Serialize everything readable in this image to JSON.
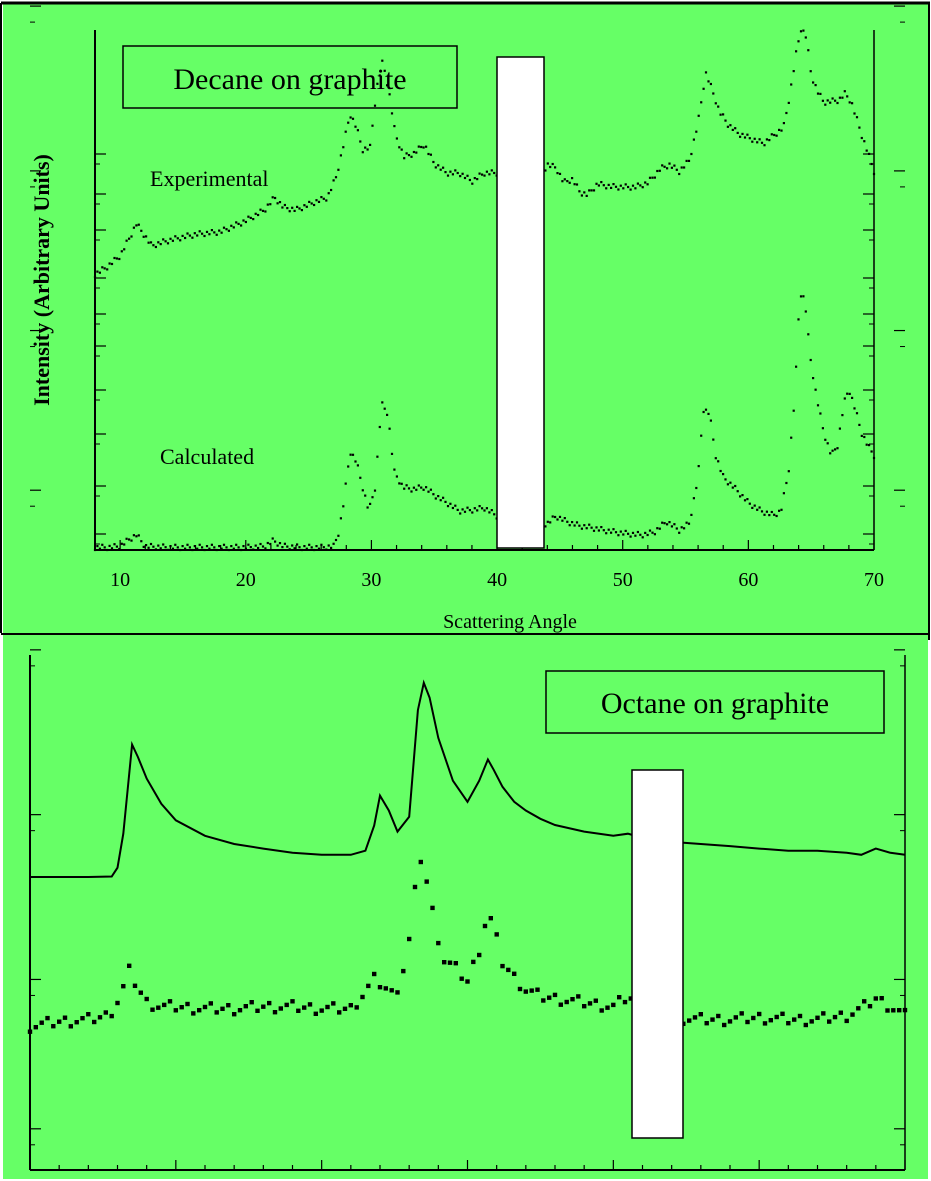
{
  "colors": {
    "background": "#66ff66",
    "ink": "#000000",
    "mask": "#ffffff"
  },
  "chart_data": [
    {
      "type": "scatter",
      "title": "Decane on graphite",
      "xlabel": "Scattering Angle",
      "ylabel": "Intensity (Arbitrary Units)",
      "xlim": [
        8,
        70
      ],
      "ylim": [
        0,
        100
      ],
      "xticks": [
        10,
        20,
        30,
        40,
        50,
        60,
        70
      ],
      "y_tick_marks": [
        8,
        32,
        58,
        80,
        102,
        118,
        136,
        160,
        178,
        198
      ],
      "grid": false,
      "series": [
        {
          "name": "Experimental",
          "style": "dotted",
          "x": [
            8.0,
            9.0,
            10.0,
            10.7,
            11.3,
            12.0,
            12.5,
            13.5,
            14.5,
            16.0,
            18.0,
            20.0,
            21.5,
            22.3,
            23.0,
            24.0,
            25.5,
            26.5,
            27.2,
            27.7,
            28.3,
            28.8,
            29.3,
            29.9,
            30.4,
            30.9,
            31.4,
            31.9,
            32.6,
            33.4,
            34.2,
            35.0,
            36.0,
            37.0,
            38.0,
            39.0,
            40.0,
            41.0,
            42.0,
            43.0,
            44.0,
            44.7,
            45.3,
            46.0,
            46.6,
            47.2,
            48.0,
            49.0,
            50.0,
            51.0,
            52.0,
            53.0,
            53.7,
            54.5,
            55.3,
            56.0,
            56.6,
            57.1,
            57.7,
            58.4,
            59.2,
            60.0,
            61.2,
            62.8,
            63.3,
            63.8,
            64.2,
            64.6,
            65.0,
            65.5,
            66.0,
            66.6,
            67.2,
            67.7,
            68.2,
            68.7,
            69.1,
            69.5,
            70.0
          ],
          "y": [
            53.0,
            54.5,
            56.6,
            59.8,
            62.7,
            60.3,
            58.5,
            59.3,
            59.9,
            60.7,
            61.2,
            63.3,
            65.4,
            67.8,
            65.9,
            65.4,
            66.9,
            67.8,
            71.8,
            77.0,
            83.9,
            81.3,
            77.0,
            77.4,
            88.6,
            94.0,
            88.1,
            79.9,
            75.6,
            76.3,
            78.0,
            74.3,
            72.5,
            72.5,
            70.9,
            72.5,
            72.5,
            71.5,
            70.9,
            70.1,
            74.1,
            73.5,
            70.7,
            71.3,
            68.8,
            68.3,
            70.4,
            69.9,
            69.8,
            69.8,
            70.6,
            73.3,
            74.1,
            72.8,
            74.9,
            82.2,
            91.8,
            88.6,
            84.3,
            81.8,
            80.1,
            79.3,
            78.2,
            81.2,
            87.5,
            95.4,
            100.4,
            98.7,
            91.4,
            88.2,
            86.1,
            86.3,
            86.5,
            87.8,
            86.1,
            82.3,
            79.2,
            76.5,
            72.8
          ]
        },
        {
          "name": "Calculated",
          "style": "dotted",
          "x": [
            8.0,
            9.0,
            10.0,
            10.7,
            11.3,
            12.0,
            14.0,
            16.0,
            18.0,
            20.0,
            21.5,
            22.2,
            23.0,
            24.5,
            26.0,
            27.0,
            27.4,
            27.8,
            28.3,
            28.8,
            29.3,
            29.8,
            30.3,
            30.8,
            31.3,
            31.8,
            32.5,
            33.3,
            34.2,
            35.0,
            36.0,
            37.0,
            38.0,
            39.0,
            40.0,
            41.0,
            42.0,
            43.0,
            44.0,
            44.7,
            45.5,
            46.5,
            47.5,
            48.5,
            49.5,
            50.5,
            51.5,
            52.5,
            53.5,
            54.5,
            55.3,
            56.0,
            56.4,
            56.9,
            57.4,
            58.0,
            59.0,
            60.0,
            61.0,
            62.0,
            62.6,
            63.2,
            63.7,
            64.1,
            64.5,
            64.9,
            65.4,
            66.0,
            66.6,
            67.1,
            67.6,
            68.0,
            68.5,
            69.0,
            69.5,
            70.0
          ],
          "y": [
            0.5,
            0.5,
            0.7,
            2.0,
            2.9,
            0.7,
            0.5,
            0.5,
            0.5,
            0.5,
            0.7,
            1.8,
            0.7,
            0.5,
            0.5,
            0.7,
            3.4,
            9.2,
            19.0,
            17.0,
            12.1,
            7.5,
            12.1,
            28.1,
            26.3,
            15.1,
            12.1,
            11.7,
            12.1,
            10.6,
            9.1,
            7.5,
            7.7,
            8.1,
            6.5,
            5.5,
            4.9,
            4.7,
            5.1,
            6.5,
            5.5,
            4.7,
            4.3,
            3.8,
            3.4,
            3.1,
            2.9,
            3.4,
            5.5,
            3.8,
            5.1,
            14.0,
            27.1,
            26.3,
            18.2,
            14.0,
            11.7,
            9.1,
            7.5,
            6.7,
            7.5,
            15.1,
            29.8,
            49.6,
            48.1,
            37.5,
            29.8,
            22.6,
            18.2,
            20.1,
            28.1,
            31.0,
            27.1,
            22.6,
            20.1,
            18.2
          ]
        }
      ]
    },
    {
      "type": "scatter",
      "title": "Octane on graphite",
      "xlabel": "",
      "ylabel": "",
      "xlim": [
        5,
        35
      ],
      "ylim": [
        0,
        100
      ],
      "xticks": [
        5,
        10,
        15,
        20,
        25,
        30,
        35
      ],
      "y_tick_marks": [
        8,
        37,
        69,
        101,
        132,
        163,
        194,
        226,
        258
      ],
      "grid": false,
      "series": [
        {
          "name": "",
          "style": "line",
          "x": [
            5.0,
            7.0,
            7.8,
            8.0,
            8.2,
            8.5,
            8.7,
            9.0,
            9.5,
            10.0,
            11.0,
            12.0,
            13.0,
            14.0,
            15.0,
            16.0,
            16.5,
            16.8,
            17.0,
            17.3,
            17.6,
            18.0,
            18.3,
            18.5,
            18.7,
            19.0,
            19.5,
            20.0,
            20.4,
            20.7,
            20.9,
            21.2,
            21.6,
            22.0,
            22.5,
            23.0,
            24.0,
            25.0,
            25.5,
            26.0,
            27.0,
            28.0,
            29.0,
            30.0,
            31.0,
            32.0,
            33.0,
            33.5,
            34.0,
            34.5,
            35.0
          ],
          "y": [
            56.9,
            56.9,
            57.0,
            58.7,
            65.3,
            82.6,
            80.2,
            76.0,
            71.1,
            67.9,
            64.9,
            63.3,
            62.4,
            61.6,
            61.2,
            61.2,
            62.0,
            66.9,
            72.7,
            69.8,
            65.7,
            68.6,
            89.3,
            94.6,
            91.7,
            83.9,
            75.6,
            71.5,
            75.6,
            79.7,
            77.7,
            74.4,
            71.5,
            69.8,
            68.2,
            67.0,
            65.7,
            64.9,
            65.3,
            64.5,
            63.7,
            63.3,
            62.9,
            62.4,
            62.0,
            62.0,
            61.6,
            61.2,
            62.4,
            61.6,
            61.2
          ]
        },
        {
          "name": "",
          "style": "points",
          "x": [
            5.0,
            6.0,
            7.0,
            7.7,
            8.1,
            8.4,
            8.7,
            9.0,
            9.5,
            10.0,
            11.0,
            12.0,
            13.0,
            14.0,
            15.0,
            16.0,
            16.5,
            16.8,
            17.1,
            17.4,
            17.7,
            18.0,
            18.2,
            18.4,
            18.6,
            18.9,
            19.2,
            19.6,
            20.0,
            20.4,
            20.7,
            20.9,
            21.2,
            21.6,
            22.0,
            22.5,
            23.0,
            24.0,
            25.0,
            25.5,
            26.0,
            27.0,
            28.0,
            29.0,
            30.0,
            31.0,
            32.0,
            33.0,
            33.5,
            34.0,
            34.5,
            35.0
          ],
          "y": [
            27.9,
            28.8,
            29.2,
            30.0,
            33.7,
            38.6,
            35.4,
            32.5,
            31.7,
            31.7,
            31.3,
            31.3,
            31.7,
            31.7,
            31.3,
            31.3,
            34.6,
            37.0,
            35.8,
            34.2,
            36.2,
            44.5,
            53.9,
            60.5,
            56.0,
            47.3,
            40.7,
            39.1,
            36.6,
            42.8,
            50.2,
            46.9,
            40.3,
            37.4,
            35.0,
            33.7,
            33.3,
            32.5,
            31.7,
            33.7,
            31.7,
            29.6,
            29.2,
            29.2,
            29.6,
            29.2,
            29.2,
            30.0,
            31.3,
            33.3,
            31.7,
            30.0
          ]
        }
      ]
    }
  ]
}
